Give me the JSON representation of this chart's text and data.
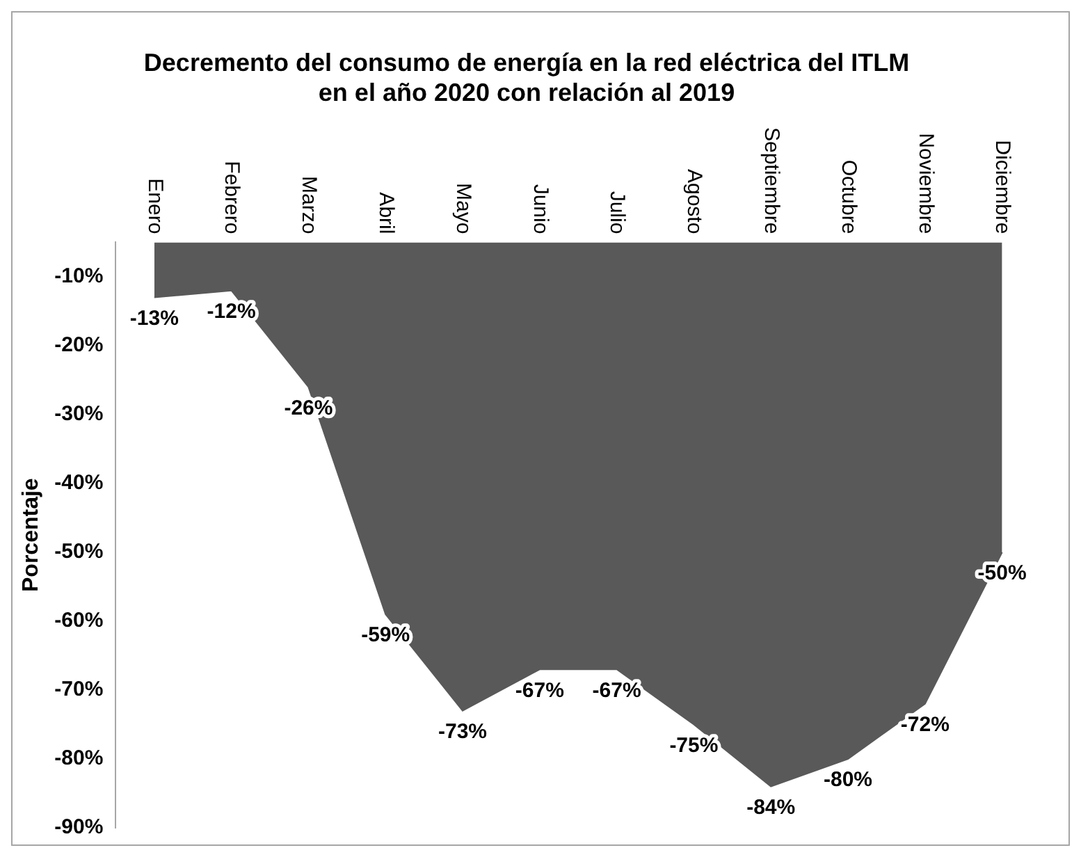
{
  "chart_data": {
    "type": "area",
    "title": "Decremento del consumo de energía en la red eléctrica del ITLM en el año 2020 con relación al 2019",
    "ylabel": "Porcentaje",
    "categories": [
      "Enero",
      "Febrero",
      "Marzo",
      "Abril",
      "Mayo",
      "Junio",
      "Julio",
      "Agosto",
      "Septiembre",
      "Octubre",
      "Noviembre",
      "Diciembre"
    ],
    "values": [
      -13,
      -12,
      -26,
      -59,
      -73,
      -67,
      -67,
      -75,
      -84,
      -80,
      -72,
      -50
    ],
    "color": "#595959",
    "ylim": [
      -90,
      -5
    ],
    "yticks": [
      {
        "value": -10,
        "label": "-10%"
      },
      {
        "value": -20,
        "label": "-20%"
      },
      {
        "value": -30,
        "label": "-30%"
      },
      {
        "value": -40,
        "label": "-40%"
      },
      {
        "value": -50,
        "label": "-50%"
      },
      {
        "value": -60,
        "label": "-60%"
      },
      {
        "value": -70,
        "label": "-70%"
      },
      {
        "value": -80,
        "label": "-80%"
      },
      {
        "value": -90,
        "label": "-90%"
      }
    ],
    "value_labels": [
      "-13%",
      "-12%",
      "-26%",
      "-59%",
      "-73%",
      "-67%",
      "-67%",
      "-75%",
      "-84%",
      "-80%",
      "-72%",
      "-50%"
    ],
    "grid": false,
    "legend": false
  }
}
